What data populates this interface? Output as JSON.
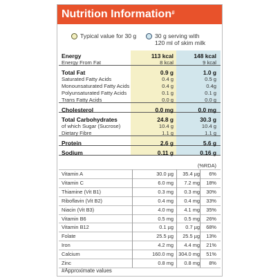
{
  "header": {
    "title": "Nutrition Information",
    "title_mark": "#"
  },
  "legend": {
    "typical": "Typical value for 30 g",
    "serving_line1": "30 g serving with",
    "serving_line2": "120 ml of skim milk"
  },
  "colors": {
    "header_bg": "#e8522b",
    "col_typical": "#f5f0c7",
    "col_serving": "#d2e6ec"
  },
  "macros": [
    {
      "label": "Energy",
      "v1": "113 kcal",
      "v2": "148 kcal",
      "bold": true
    },
    {
      "label": "Energy From Fat",
      "v1": "8 kcal",
      "v2": "9 kcal",
      "bold": false
    },
    {
      "label": "Total Fat",
      "v1": "0.9 g",
      "v2": "1.0 g",
      "bold": true
    },
    {
      "label": "Saturated Fatty Acids",
      "v1": "0.4 g",
      "v2": "0.5 g",
      "bold": false
    },
    {
      "label": "Monounsaturated Fatty Acids",
      "v1": "0.4 g",
      "v2": "0.4g",
      "bold": false
    },
    {
      "label": "Polyunsaturated Fatty Acids",
      "v1": "0.1 g",
      "v2": "0.1 g",
      "bold": false
    },
    {
      "label": "Trans Fatty Acids",
      "v1": "0.0 g",
      "v2": "0.0 g",
      "bold": false
    },
    {
      "label": "Cholesterol",
      "v1": "0.0 mg",
      "v2": "0.0 mg",
      "bold": true
    },
    {
      "label": "Total Carbohydrates",
      "v1": "24.8 g",
      "v2": "30.3 g",
      "bold": true
    },
    {
      "label": "of which Sugar (Sucrose)",
      "v1": "10.4 g",
      "v2": "10.4 g",
      "bold": false
    },
    {
      "label": "Dietary Fibre",
      "v1": "1.1 g",
      "v2": "1.1 g",
      "bold": false
    },
    {
      "label": "Protein",
      "v1": "2.6 g",
      "v2": "5.6 g",
      "bold": true
    },
    {
      "label": "Sodium",
      "v1": "0.11 g",
      "v2": "0.16 g",
      "bold": true
    }
  ],
  "rda_header": "(%RDA)",
  "micros": [
    {
      "label": "Vitamin A",
      "v1": "30.0 µg",
      "v2": "35.4 µg",
      "pct": "6%"
    },
    {
      "label": "Vitamin C",
      "v1": "6.0 mg",
      "v2": "7.2 mg",
      "pct": "18%"
    },
    {
      "label": "Thiamine (Vit B1)",
      "v1": "0.3 mg",
      "v2": "0.3 mg",
      "pct": "30%"
    },
    {
      "label": "Riboflavin (Vit B2)",
      "v1": "0.4 mg",
      "v2": "0.4 mg",
      "pct": "33%"
    },
    {
      "label": "Niacin (Vit B3)",
      "v1": "4.0 mg",
      "v2": "4.1 mg",
      "pct": "35%"
    },
    {
      "label": "Vitamin B6",
      "v1": "0.5 mg",
      "v2": "0.5 mg",
      "pct": "26%"
    },
    {
      "label": "Vitamin B12",
      "v1": "0.1 µg",
      "v2": "0.7 µg",
      "pct": "68%"
    },
    {
      "label": "Folate",
      "v1": "25.5 µg",
      "v2": "25.5 µg",
      "pct": "13%"
    },
    {
      "label": "Iron",
      "v1": "4.2 mg",
      "v2": "4.4 mg",
      "pct": "21%"
    },
    {
      "label": "Calcium",
      "v1": "160.0 mg",
      "v2": "304.0 mg",
      "pct": "51%"
    },
    {
      "label": "Zinc",
      "v1": "0.8 mg",
      "v2": "0.8 mg",
      "pct": "8%"
    }
  ],
  "footnote": "#Approximate values"
}
